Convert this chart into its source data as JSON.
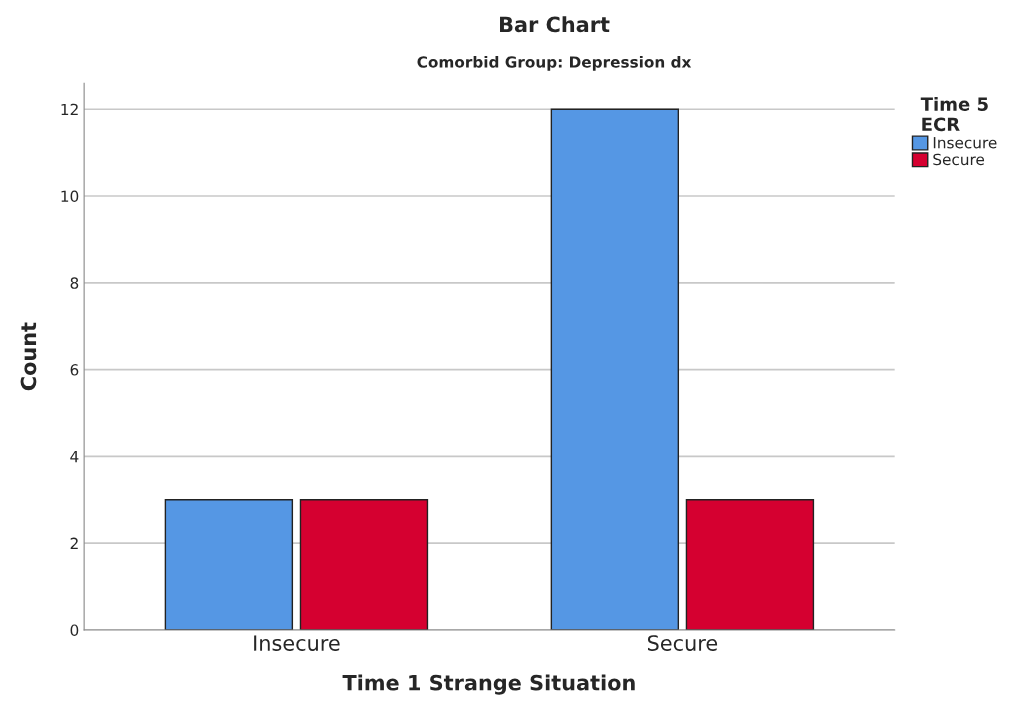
{
  "chart_data": {
    "type": "bar",
    "title": "Bar Chart",
    "subtitle": "Comorbid Group: Depression dx",
    "xlabel": "Time 1 Strange Situation",
    "ylabel": "Count",
    "legend_title": "Time 5\nECR",
    "categories": [
      "Insecure",
      "Secure"
    ],
    "series": [
      {
        "name": "Insecure",
        "color": "#5597e4",
        "values": [
          3,
          12
        ]
      },
      {
        "name": "Secure",
        "color": "#d50030",
        "values": [
          3,
          3
        ]
      }
    ],
    "ylim": [
      0,
      12.6
    ],
    "yticks": [
      0,
      2,
      4,
      6,
      8,
      10,
      12
    ],
    "grid": "y",
    "legend": "right"
  }
}
